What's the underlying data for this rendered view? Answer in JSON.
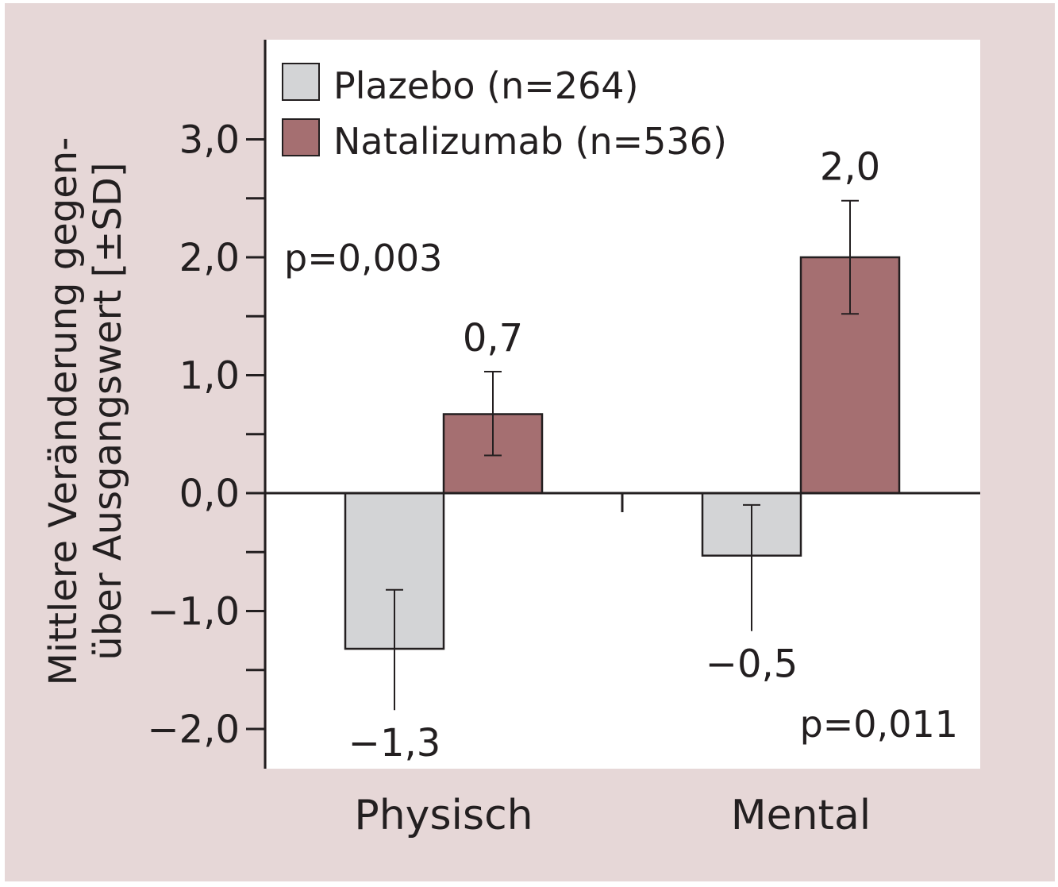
{
  "colors": {
    "background": "#e6d7d7",
    "plot_area": "#ffffff",
    "axis": "#231f20",
    "placebo": "#d3d4d6",
    "natalizumab": "#a56f71"
  },
  "chart_data": {
    "type": "bar",
    "categories": [
      "Physisch",
      "Mental"
    ],
    "ylabel_line1": "Mittlere Veränderung gegen-",
    "ylabel_line2": "über Ausgangswert [±SD]",
    "ylim": [
      -2.35,
      3.75
    ],
    "major_ticks": [
      3.0,
      2.0,
      1.0,
      0.0,
      -1.0,
      -2.0
    ],
    "major_tick_labels": [
      "3,0",
      "2,0",
      "1,0",
      "0,0",
      "−1,0",
      "−2,0"
    ],
    "minor_ticks": [
      2.5,
      1.5,
      0.5,
      -0.5,
      -1.5
    ],
    "legend_position": "top-left",
    "series": [
      {
        "name": "Plazebo (n=264)",
        "values": [
          -1.32,
          -0.53
        ],
        "error_low": [
          -1.84,
          -1.17
        ],
        "error_high": [
          -0.82,
          -0.1
        ],
        "labels": [
          "−1,3",
          "−0,5"
        ]
      },
      {
        "name": "Natalizumab (n=536)",
        "values": [
          0.67,
          2.0
        ],
        "error_low": [
          0.32,
          1.52
        ],
        "error_high": [
          1.03,
          2.48
        ],
        "labels": [
          "0,7",
          "2,0"
        ]
      }
    ],
    "annotations": [
      "p=0,003",
      "p=0,011"
    ]
  }
}
